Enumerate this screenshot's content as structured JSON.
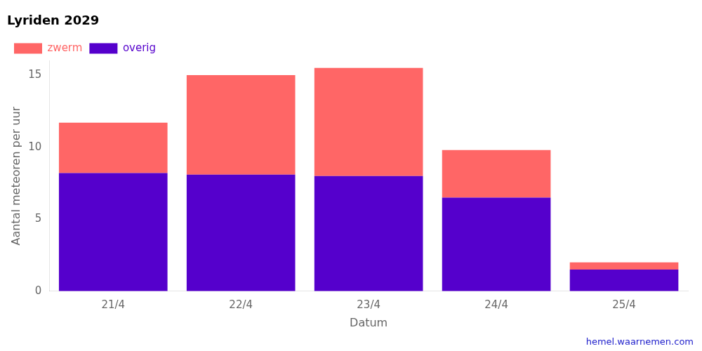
{
  "chart_data": {
    "type": "bar",
    "title": "Lyriden 2029",
    "xlabel": "Datum",
    "ylabel": "Aantal meteoren per uur",
    "categories": [
      "21/4",
      "22/4",
      "23/4",
      "24/4",
      "25/4"
    ],
    "series": [
      {
        "name": "overig",
        "color": "#5500cc",
        "values": [
          8.2,
          8.1,
          8.0,
          6.5,
          1.5
        ]
      },
      {
        "name": "zwerm",
        "color": "#ff6666",
        "values": [
          3.5,
          6.9,
          7.5,
          3.3,
          0.5
        ]
      }
    ],
    "stacked": true,
    "ylim": [
      0,
      16
    ],
    "yticks": [
      0,
      5,
      10,
      15
    ],
    "grid": false,
    "legend": "upper left",
    "annotations": [
      {
        "text": "hemel.waarnemen.com",
        "color": "#2222cc"
      }
    ]
  }
}
